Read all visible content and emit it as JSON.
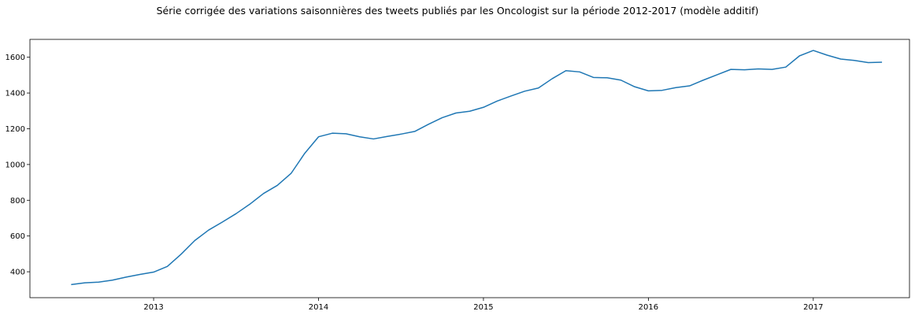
{
  "chart_data": {
    "type": "line",
    "title": "Série corrigée des variations saisonnières des tweets publiés par les Oncologist sur la période 2012-2017 (modèle additif)",
    "xlabel": "",
    "ylabel": "",
    "x_ticks": [
      "2013",
      "2014",
      "2015",
      "2016",
      "2017"
    ],
    "y_ticks": [
      400,
      600,
      800,
      1000,
      1200,
      1400,
      1600
    ],
    "xlim": [
      "2012-04",
      "2017-08"
    ],
    "ylim": [
      255,
      1700
    ],
    "grid": false,
    "series_color": "#1f77b4",
    "series": [
      {
        "x": [
          "2012-07",
          "2012-08",
          "2012-09",
          "2012-10",
          "2012-11",
          "2012-12",
          "2013-01",
          "2013-02",
          "2013-03",
          "2013-04",
          "2013-05",
          "2013-06",
          "2013-07",
          "2013-08",
          "2013-09",
          "2013-10",
          "2013-11",
          "2013-12",
          "2014-01",
          "2014-02",
          "2014-03",
          "2014-04",
          "2014-05",
          "2014-06",
          "2014-07",
          "2014-08",
          "2014-09",
          "2014-10",
          "2014-11",
          "2014-12",
          "2015-01",
          "2015-02",
          "2015-03",
          "2015-04",
          "2015-05",
          "2015-06",
          "2015-07",
          "2015-08",
          "2015-09",
          "2015-10",
          "2015-11",
          "2015-12",
          "2016-01",
          "2016-02",
          "2016-03",
          "2016-04",
          "2016-05",
          "2016-06",
          "2016-07",
          "2016-08",
          "2016-09",
          "2016-10",
          "2016-11",
          "2016-12",
          "2017-01",
          "2017-02",
          "2017-03",
          "2017-04",
          "2017-05",
          "2017-06"
        ],
        "values": [
          328,
          338,
          342,
          353,
          370,
          385,
          398,
          430,
          498,
          575,
          633,
          678,
          725,
          778,
          838,
          883,
          950,
          1063,
          1155,
          1175,
          1172,
          1155,
          1143,
          1157,
          1170,
          1185,
          1225,
          1262,
          1288,
          1298,
          1320,
          1355,
          1383,
          1410,
          1428,
          1480,
          1525,
          1518,
          1487,
          1485,
          1472,
          1435,
          1412,
          1415,
          1430,
          1440,
          1472,
          1502,
          1532,
          1530,
          1535,
          1532,
          1545,
          1608,
          1638,
          1612,
          1590,
          1582,
          1570,
          1572
        ]
      }
    ]
  }
}
